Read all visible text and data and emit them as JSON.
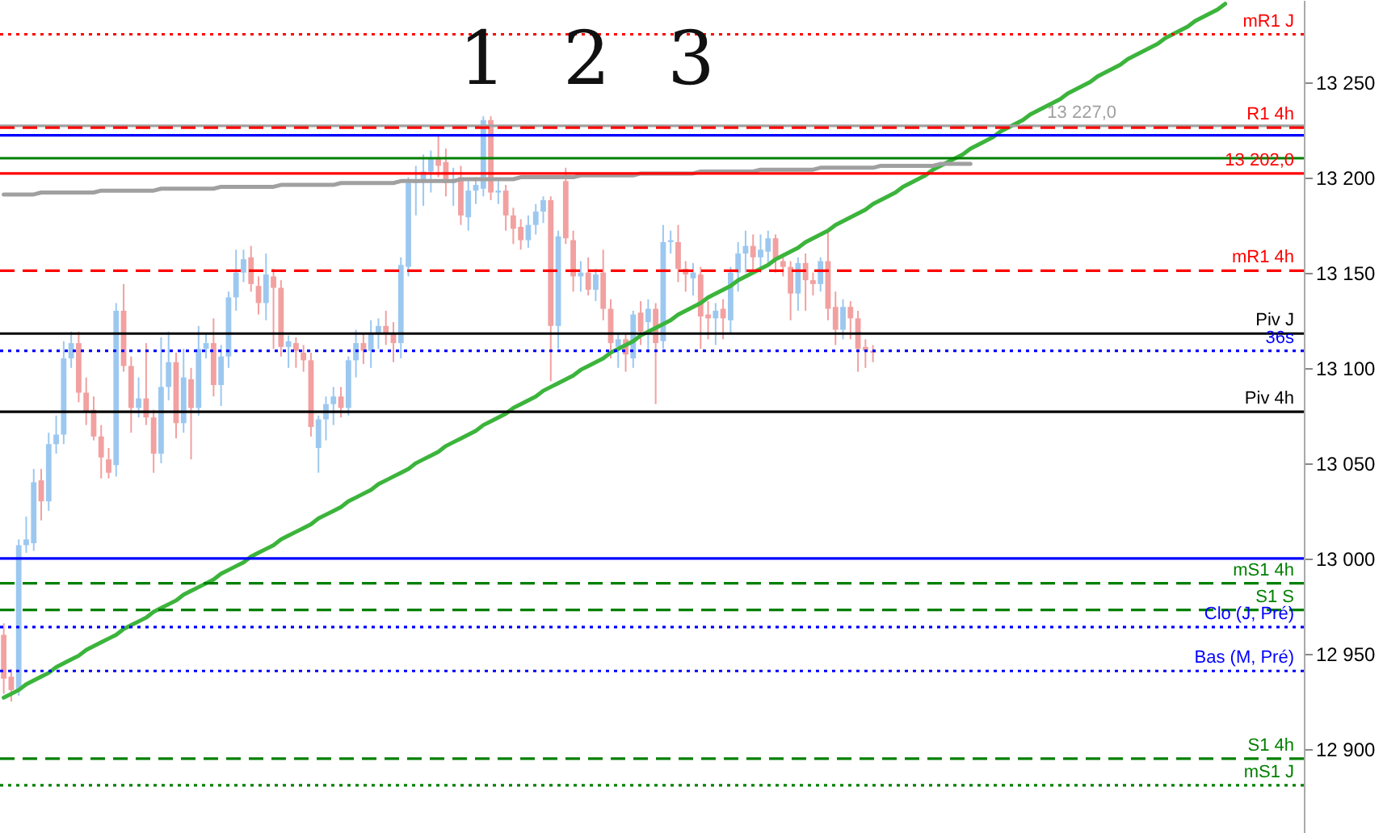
{
  "chart_data": {
    "type": "candlestick",
    "categories": [
      null,
      null,
      null,
      null,
      null,
      null,
      null,
      null,
      null,
      null,
      null,
      null,
      null,
      null,
      null,
      null,
      null,
      null,
      null,
      null,
      null,
      null,
      null,
      null,
      null,
      null,
      null,
      null,
      null,
      null,
      null,
      null,
      null,
      null,
      null,
      null,
      null,
      null,
      null,
      null,
      null,
      null,
      null,
      null,
      null,
      null,
      null,
      null,
      null,
      null,
      null,
      null,
      null,
      null,
      null,
      null,
      null,
      null,
      null,
      null,
      null,
      null,
      null,
      null,
      null,
      null,
      null,
      null,
      null,
      null,
      null,
      null,
      null,
      null,
      null,
      null,
      null,
      null,
      null,
      null,
      null,
      null,
      null,
      null,
      null,
      null,
      null,
      null,
      null,
      null,
      null,
      null,
      null,
      null,
      null,
      null,
      null,
      null,
      null,
      null,
      null,
      null,
      null,
      null,
      null,
      null,
      null,
      null,
      null,
      null,
      null,
      null,
      null,
      null,
      null,
      null,
      null,
      null,
      null,
      null,
      null,
      null,
      null,
      null,
      null,
      null,
      null,
      null,
      null,
      null,
      null,
      null,
      null,
      null,
      null,
      null,
      null,
      null,
      null,
      null,
      null,
      null,
      null,
      null,
      null,
      null,
      null,
      null,
      null,
      null,
      null,
      null,
      null,
      null,
      null,
      null,
      null,
      null,
      null,
      null,
      null,
      null,
      null,
      null,
      null,
      null,
      null,
      null,
      null,
      null,
      null,
      null,
      null,
      null
    ],
    "ohlc": [
      [
        12960,
        12966,
        12929,
        12937
      ],
      [
        12938,
        12942,
        12925,
        12931
      ],
      [
        12931,
        13010,
        12928,
        13007
      ],
      [
        13007,
        13022,
        13003,
        13010
      ],
      [
        13008,
        13047,
        13004,
        13040
      ],
      [
        13041,
        13047,
        13020,
        13030
      ],
      [
        13030,
        13066,
        13025,
        13060
      ],
      [
        13060,
        13075,
        13055,
        13065
      ],
      [
        13065,
        13114,
        13060,
        13105
      ],
      [
        13105,
        13119,
        13100,
        13113
      ],
      [
        13113,
        13119,
        13082,
        13087
      ],
      [
        13087,
        13095,
        13070,
        13077
      ],
      [
        13078,
        13085,
        13062,
        13064
      ],
      [
        13064,
        13070,
        13042,
        13053
      ],
      [
        13052,
        13058,
        13042,
        13045
      ],
      [
        13049,
        13134,
        13043,
        13130
      ],
      [
        13130,
        13144,
        13098,
        13101
      ],
      [
        13101,
        13106,
        13066,
        13079
      ],
      [
        13079,
        13095,
        13074,
        13084
      ],
      [
        13084,
        13113,
        13070,
        13074
      ],
      [
        13074,
        13078,
        13045,
        13055
      ],
      [
        13055,
        13116,
        13050,
        13090
      ],
      [
        13090,
        13119,
        13083,
        13103
      ],
      [
        13103,
        13108,
        13063,
        13071
      ],
      [
        13071,
        13110,
        13066,
        13095
      ],
      [
        13094,
        13100,
        13052,
        13079
      ],
      [
        13079,
        13122,
        13075,
        13110
      ],
      [
        13110,
        13118,
        13105,
        13113
      ],
      [
        13113,
        13126,
        13085,
        13091
      ],
      [
        13091,
        13112,
        13080,
        13106
      ],
      [
        13106,
        13140,
        13100,
        13137
      ],
      [
        13137,
        13162,
        13130,
        13150
      ],
      [
        13150,
        13162,
        13145,
        13157
      ],
      [
        13158,
        13164,
        13140,
        13144
      ],
      [
        13143,
        13148,
        13128,
        13134
      ],
      [
        13134,
        13160,
        13125,
        13149
      ],
      [
        13148,
        13152,
        13110,
        13142
      ],
      [
        13142,
        13146,
        13106,
        13111
      ],
      [
        13111,
        13117,
        13100,
        13114
      ],
      [
        13113,
        13116,
        13100,
        13109
      ],
      [
        13108,
        13112,
        13098,
        13104
      ],
      [
        13104,
        13108,
        13064,
        13069
      ],
      [
        13058,
        13075,
        13045,
        13073
      ],
      [
        13073,
        13085,
        13062,
        13081
      ],
      [
        13081,
        13090,
        13070,
        13085
      ],
      [
        13085,
        13090,
        13074,
        13079
      ],
      [
        13079,
        13106,
        13075,
        13104
      ],
      [
        13104,
        13120,
        13095,
        13113
      ],
      [
        13113,
        13118,
        13102,
        13109
      ],
      [
        13109,
        13125,
        13100,
        13118
      ],
      [
        13118,
        13126,
        13110,
        13122
      ],
      [
        13122,
        13130,
        13112,
        13118
      ],
      [
        13118,
        13124,
        13103,
        13113
      ],
      [
        13113,
        13158,
        13105,
        13154
      ],
      [
        13153,
        13200,
        13148,
        13197
      ],
      [
        13197,
        13206,
        13180,
        13199
      ],
      [
        13199,
        13212,
        13185,
        13203
      ],
      [
        13203,
        13214,
        13192,
        13210
      ],
      [
        13210,
        13222,
        13200,
        13206
      ],
      [
        13208,
        13215,
        13190,
        13197
      ],
      [
        13197,
        13205,
        13185,
        13199
      ],
      [
        13200,
        13206,
        13175,
        13180
      ],
      [
        13179,
        13198,
        13172,
        13193
      ],
      [
        13193,
        13200,
        13186,
        13196
      ],
      [
        13194,
        13232,
        13190,
        13230
      ],
      [
        13230,
        13232,
        13188,
        13192
      ],
      [
        13192,
        13198,
        13186,
        13193
      ],
      [
        13193,
        13196,
        13172,
        13180
      ],
      [
        13180,
        13184,
        13165,
        13173
      ],
      [
        13174,
        13178,
        13162,
        13167
      ],
      [
        13167,
        13180,
        13163,
        13175
      ],
      [
        13175,
        13186,
        13170,
        13182
      ],
      [
        13182,
        13190,
        13176,
        13188
      ],
      [
        13188,
        13190,
        13093,
        13122
      ],
      [
        13122,
        13172,
        13110,
        13169
      ],
      [
        13198,
        13205,
        13165,
        13168
      ],
      [
        13167,
        13172,
        13140,
        13148
      ],
      [
        13148,
        13156,
        13140,
        13150
      ],
      [
        13150,
        13158,
        13138,
        13141
      ],
      [
        13141,
        13152,
        13135,
        13149
      ],
      [
        13150,
        13162,
        13125,
        13131
      ],
      [
        13131,
        13136,
        13105,
        13113
      ],
      [
        13111,
        13118,
        13100,
        13115
      ],
      [
        13115,
        13118,
        13098,
        13107
      ],
      [
        13105,
        13130,
        13100,
        13128
      ],
      [
        13129,
        13135,
        13112,
        13119
      ],
      [
        13124,
        13136,
        13108,
        13131
      ],
      [
        13131,
        13134,
        13081,
        13113
      ],
      [
        13114,
        13175,
        13110,
        13166
      ],
      [
        13166,
        13172,
        13160,
        13167
      ],
      [
        13166,
        13175,
        13145,
        13152
      ],
      [
        13152,
        13156,
        13140,
        13149
      ],
      [
        13147,
        13155,
        13138,
        13150
      ],
      [
        13149,
        13153,
        13110,
        13127
      ],
      [
        13128,
        13135,
        13115,
        13126
      ],
      [
        13126,
        13134,
        13112,
        13130
      ],
      [
        13131,
        13136,
        13115,
        13126
      ],
      [
        13125,
        13153,
        13118,
        13150
      ],
      [
        13150,
        13166,
        13140,
        13160
      ],
      [
        13160,
        13172,
        13150,
        13164
      ],
      [
        13164,
        13170,
        13150,
        13158
      ],
      [
        13158,
        13170,
        13150,
        13162
      ],
      [
        13161,
        13172,
        13155,
        13168
      ],
      [
        13168,
        13170,
        13150,
        13157
      ],
      [
        13156,
        13160,
        13148,
        13153
      ],
      [
        13153,
        13156,
        13125,
        13139
      ],
      [
        13139,
        13158,
        13130,
        13155
      ],
      [
        13155,
        13160,
        13130,
        13146
      ],
      [
        13146,
        13150,
        13138,
        13144
      ],
      [
        13144,
        13158,
        13140,
        13156
      ],
      [
        13156,
        13172,
        13125,
        13131
      ],
      [
        13132,
        13140,
        13112,
        13120
      ],
      [
        13120,
        13136,
        13115,
        13132
      ],
      [
        13132,
        13135,
        13115,
        13126
      ],
      [
        13126,
        13130,
        13098,
        13110
      ],
      [
        13111,
        13115,
        13100,
        13109
      ],
      [
        13109,
        13112,
        13103,
        13108
      ],
      null,
      null,
      null,
      null,
      null,
      null,
      null,
      null,
      null,
      null,
      null,
      null,
      null,
      null,
      null,
      null,
      null,
      null,
      null,
      null,
      null,
      null,
      null,
      null,
      null,
      null,
      null,
      null,
      null,
      null,
      null,
      null,
      null,
      null,
      null,
      null,
      null,
      null,
      null,
      null,
      null,
      null,
      null,
      null,
      null,
      null,
      null,
      null,
      null,
      null,
      null,
      null,
      null,
      null,
      null,
      null,
      null
    ],
    "colors": [
      "#f2a0a0",
      "#f2a0a0",
      "#9cc8f0",
      "#9cc8f0",
      "#9cc8f0",
      "#f2a0a0",
      "#9cc8f0",
      "#9cc8f0",
      "#9cc8f0",
      "#9cc8f0",
      "#f2a0a0",
      "#f2a0a0",
      "#f2a0a0",
      "#f2a0a0",
      "#f2a0a0",
      "#9cc8f0",
      "#f2a0a0",
      "#f2a0a0",
      "#9cc8f0",
      "#f2a0a0",
      "#f2a0a0",
      "#9cc8f0",
      "#9cc8f0",
      "#f2a0a0",
      "#9cc8f0",
      "#f2a0a0",
      "#9cc8f0",
      "#9cc8f0",
      "#f2a0a0",
      "#9cc8f0",
      "#9cc8f0",
      "#9cc8f0",
      "#9cc8f0",
      "#f2a0a0",
      "#f2a0a0",
      "#9cc8f0",
      "#f2a0a0",
      "#f2a0a0",
      "#9cc8f0",
      "#f2a0a0",
      "#f2a0a0",
      "#f2a0a0",
      "#9cc8f0",
      "#9cc8f0",
      "#9cc8f0",
      "#f2a0a0",
      "#9cc8f0",
      "#9cc8f0",
      "#f2a0a0",
      "#9cc8f0",
      "#9cc8f0",
      "#f2a0a0",
      "#f2a0a0",
      "#9cc8f0",
      "#9cc8f0",
      "#9cc8f0",
      "#9cc8f0",
      "#9cc8f0",
      "#f2a0a0",
      "#f2a0a0",
      "#9cc8f0",
      "#f2a0a0",
      "#9cc8f0",
      "#9cc8f0",
      "#9cc8f0",
      "#f2a0a0",
      "#9cc8f0",
      "#f2a0a0",
      "#f2a0a0",
      "#f2a0a0",
      "#9cc8f0",
      "#9cc8f0",
      "#9cc8f0",
      "#f2a0a0",
      "#9cc8f0",
      "#f2a0a0",
      "#f2a0a0",
      "#9cc8f0",
      "#f2a0a0",
      "#9cc8f0",
      "#f2a0a0",
      "#f2a0a0",
      "#9cc8f0",
      "#f2a0a0",
      "#9cc8f0",
      "#f2a0a0",
      "#9cc8f0",
      "#f2a0a0",
      "#9cc8f0",
      "#9cc8f0",
      "#f2a0a0",
      "#f2a0a0",
      "#9cc8f0",
      "#f2a0a0",
      "#f2a0a0",
      "#9cc8f0",
      "#f2a0a0",
      "#9cc8f0",
      "#9cc8f0",
      "#9cc8f0",
      "#f2a0a0",
      "#9cc8f0",
      "#9cc8f0",
      "#f2a0a0",
      "#f2a0a0",
      "#f2a0a0",
      "#9cc8f0",
      "#f2a0a0",
      "#f2a0a0",
      "#9cc8f0",
      "#f2a0a0",
      "#f2a0a0",
      "#9cc8f0",
      "#f2a0a0",
      "#f2a0a0",
      "#f2a0a0",
      "#f2a0a0",
      null,
      null,
      null,
      null,
      null,
      null,
      null,
      null,
      null,
      null,
      null,
      null,
      null,
      null,
      null,
      null,
      null,
      null,
      null,
      null,
      null,
      null,
      null,
      null,
      null,
      null,
      null,
      null,
      null,
      null,
      null,
      null,
      null,
      null,
      null,
      null,
      null,
      null,
      null,
      null,
      null,
      null,
      null,
      null,
      null,
      null,
      null,
      null,
      null,
      null,
      null,
      null,
      null,
      null,
      null,
      null,
      null
    ],
    "series": [
      {
        "type": "line",
        "color": "#3cb43c",
        "values": [
          12927,
          12929,
          12931,
          12934,
          12936,
          12938,
          12940,
          12943,
          12945,
          12947,
          12949,
          12952,
          12954,
          12956,
          12958,
          12960,
          12963,
          12965,
          12967,
          12969,
          12972,
          12974,
          12976,
          12978,
          12981,
          12983,
          12985,
          12987,
          12989,
          12992,
          12994,
          12996,
          12998,
          13001,
          13003,
          13005,
          13007,
          13010,
          13012,
          13014,
          13016,
          13018,
          13021,
          13023,
          13025,
          13027,
          13030,
          13032,
          13034,
          13036,
          13039,
          13041,
          13043,
          13045,
          13047,
          13050,
          13052,
          13054,
          13056,
          13059,
          13061,
          13063,
          13065,
          13067,
          13070,
          13072,
          13074,
          13076,
          13079,
          13081,
          13083,
          13085,
          13088,
          13090,
          13092,
          13094,
          13096,
          13099,
          13101,
          13103,
          13105,
          13108,
          13110,
          13112,
          13114,
          13117,
          13119,
          13121,
          13123,
          13125,
          13128,
          13130,
          13132,
          13134,
          13137,
          13139,
          13141,
          13143,
          13146,
          13148,
          13150,
          13152,
          13154,
          13157,
          13159,
          13161,
          13163,
          13166,
          13168,
          13170,
          13172,
          13175,
          13177,
          13179,
          13181,
          13183,
          13186,
          13188,
          13190,
          13192,
          13195,
          13197,
          13199,
          13201,
          13204,
          13206,
          13208,
          13210,
          13212,
          13215,
          13217,
          13219,
          13221,
          13224,
          13226,
          13228,
          13230,
          13233,
          13235,
          13237,
          13239,
          13241,
          13244,
          13246,
          13248,
          13250,
          13253,
          13255,
          13257,
          13259,
          13262,
          13264,
          13266,
          13268,
          13270,
          13273,
          13275,
          13277,
          13279,
          13282,
          13284,
          13286,
          13288,
          13291,
          null,
          null,
          null,
          null,
          null,
          null,
          null,
          null,
          null,
          null
        ]
      },
      {
        "type": "line",
        "color": "#a0a0a0",
        "values": [
          13191,
          13191,
          13191,
          13191,
          13191,
          13192,
          13192,
          13192,
          13192,
          13192,
          13192,
          13192,
          13192,
          13193,
          13193,
          13193,
          13193,
          13193,
          13193,
          13193,
          13193,
          13194,
          13194,
          13194,
          13194,
          13194,
          13194,
          13194,
          13194,
          13195,
          13195,
          13195,
          13195,
          13195,
          13195,
          13195,
          13195,
          13196,
          13196,
          13196,
          13196,
          13196,
          13196,
          13196,
          13196,
          13197,
          13197,
          13197,
          13197,
          13197,
          13197,
          13197,
          13197,
          13198,
          13198,
          13198,
          13198,
          13198,
          13198,
          13198,
          13198,
          13199,
          13199,
          13199,
          13199,
          13199,
          13199,
          13199,
          13199,
          13200,
          13200,
          13200,
          13200,
          13200,
          13200,
          13200,
          13200,
          13201,
          13201,
          13201,
          13201,
          13201,
          13201,
          13201,
          13201,
          13202,
          13202,
          13202,
          13202,
          13202,
          13202,
          13202,
          13202,
          13203,
          13203,
          13203,
          13203,
          13203,
          13203,
          13203,
          13203,
          13204,
          13204,
          13204,
          13204,
          13204,
          13204,
          13204,
          13204,
          13205,
          13205,
          13205,
          13205,
          13205,
          13205,
          13205,
          13205,
          13206,
          13206,
          13206,
          13206,
          13206,
          13206,
          13206,
          13206,
          13207,
          13207,
          13207,
          13207,
          13207,
          null,
          null,
          null,
          null,
          null,
          null,
          null,
          null,
          null,
          null,
          null,
          null,
          null,
          null,
          null,
          null,
          null,
          null,
          null,
          null,
          null,
          null,
          null,
          null,
          null,
          null,
          null,
          null,
          null,
          null,
          null,
          null,
          null,
          null,
          null,
          null,
          null,
          null,
          null,
          null,
          null,
          null,
          null,
          null
        ]
      }
    ],
    "ylim": [
      12856,
      13293
    ],
    "yticks": [
      {
        "value": 12900,
        "label": "12 900"
      },
      {
        "value": 12950,
        "label": "12 950"
      },
      {
        "value": 13000,
        "label": "13 000"
      },
      {
        "value": 13050,
        "label": "13 050"
      },
      {
        "value": 13100,
        "label": "13 100"
      },
      {
        "value": 13150,
        "label": "13 150"
      },
      {
        "value": 13200,
        "label": "13 200"
      },
      {
        "value": 13250,
        "label": "13 250"
      }
    ],
    "tick_labels": "y",
    "ref_lines": [
      {
        "axis": "y",
        "value": 13275,
        "label": "mR1 J",
        "color": "#ff0000",
        "line_style": "dotted"
      },
      {
        "axis": "y",
        "value": 13226,
        "label": "R1 4h",
        "color": "#ff0000",
        "line_style": "dashed"
      },
      {
        "axis": "y",
        "value": 13227,
        "label": "13 227,0",
        "color": "#a0a0a0",
        "line_style": "solid"
      },
      {
        "axis": "y",
        "value": 13222,
        "color": "#0000ff",
        "line_style": "solid"
      },
      {
        "axis": "y",
        "value": 13210,
        "color": "#008000",
        "line_style": "solid"
      },
      {
        "axis": "y",
        "value": 13202,
        "label": "13 202,0",
        "color": "#ff0000",
        "line_style": "solid"
      },
      {
        "axis": "y",
        "value": 13151,
        "label": "mR1 4h",
        "color": "#ff0000",
        "line_style": "dashed"
      },
      {
        "axis": "y",
        "value": 13118,
        "label": "Piv J",
        "color": "#000000",
        "line_style": "solid"
      },
      {
        "axis": "y",
        "value": 13109,
        "label": "36s",
        "color": "#0000ff",
        "line_style": "dotted"
      },
      {
        "axis": "y",
        "value": 13077,
        "label": "Piv 4h",
        "color": "#000000",
        "line_style": "solid"
      },
      {
        "axis": "y",
        "value": 13000,
        "color": "#0000ff",
        "line_style": "solid"
      },
      {
        "axis": "y",
        "value": 12987,
        "label": "mS1 4h",
        "color": "#008000",
        "line_style": "dashed"
      },
      {
        "axis": "y",
        "value": 12973,
        "label": "S1 S",
        "color": "#008000",
        "line_style": "dashed"
      },
      {
        "axis": "y",
        "value": 12964,
        "label": "Clo (J, Pré)",
        "color": "#0000ff",
        "line_style": "dotted"
      },
      {
        "axis": "y",
        "value": 12941,
        "label": "Bas (M, Pré)",
        "color": "#0000ff",
        "line_style": "dotted"
      },
      {
        "axis": "y",
        "value": 12895,
        "label": "S1 4h",
        "color": "#008000",
        "line_style": "dashed"
      },
      {
        "axis": "y",
        "value": 12881,
        "label": "mS1 J",
        "color": "#008000",
        "line_style": "dotted"
      }
    ],
    "annotations": [
      "1",
      "2",
      "3"
    ]
  }
}
